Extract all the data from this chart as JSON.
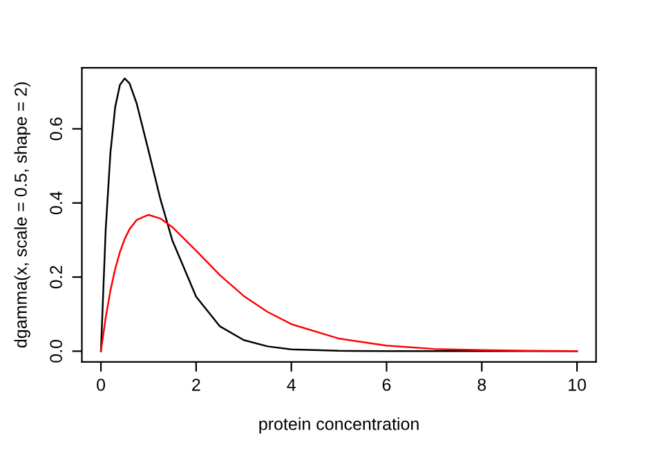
{
  "chart_data": {
    "type": "line",
    "xlabel": "protein concentration",
    "ylabel": "dgamma(x, scale = 0.5, shape = 2)",
    "x": [
      0,
      0.1,
      0.2,
      0.3,
      0.4,
      0.5,
      0.6,
      0.75,
      1,
      1.25,
      1.5,
      2,
      2.5,
      3,
      3.5,
      4,
      5,
      6,
      7,
      8,
      9,
      10
    ],
    "series": [
      {
        "color": "#000000",
        "values": [
          0,
          0.327,
          0.536,
          0.659,
          0.719,
          0.736,
          0.723,
          0.669,
          0.541,
          0.41,
          0.299,
          0.147,
          0.067,
          0.03,
          0.013,
          0.005,
          0.001,
          0,
          0,
          0,
          0,
          0
        ]
      },
      {
        "color": "#ff0000",
        "values": [
          0,
          0.09,
          0.164,
          0.222,
          0.268,
          0.303,
          0.329,
          0.354,
          0.368,
          0.358,
          0.335,
          0.271,
          0.205,
          0.149,
          0.106,
          0.073,
          0.034,
          0.015,
          0.006,
          0.003,
          0.001,
          0
        ]
      }
    ],
    "xlim": [
      -0.4,
      10.4
    ],
    "xticks": [
      0,
      2,
      4,
      6,
      8,
      10
    ],
    "ylim": [
      -0.029,
      0.765
    ],
    "yticks": [
      {
        "value": 0,
        "label": "0.0"
      },
      0.2,
      0.4,
      0.6
    ],
    "grid": false,
    "line_style": "solid",
    "marker": "none"
  }
}
